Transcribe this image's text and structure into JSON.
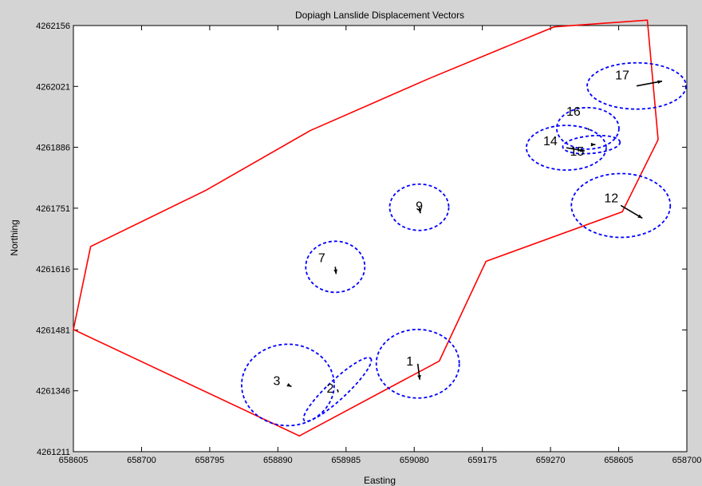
{
  "chart_data": {
    "type": "scatter",
    "title": "Dopiagh Lanslide Displacement Vectors",
    "xlabel": "Easting",
    "ylabel": "Northing",
    "xlim": [
      658605,
      658700
    ],
    "ylim": [
      4261211,
      4262156
    ],
    "x_tick_labels": [
      "658605",
      "658700",
      "658795",
      "658890",
      "658985",
      "659080",
      "659175",
      "659270",
      "658605",
      "658700"
    ],
    "y_tick_labels": [
      "4261211",
      "4261346",
      "4261481",
      "4261616",
      "4261751",
      "4261886",
      "4262021",
      "4262156"
    ],
    "grid": false,
    "boundary_color": "#ff0000",
    "ellipse_color": "#0000ff",
    "arrow_color": "#000000",
    "boundary_line": {
      "name": "",
      "points": [
        [
          658605,
          4261482
        ],
        [
          658629,
          4261666
        ],
        [
          658790,
          4261791
        ],
        [
          658935,
          4261923
        ],
        [
          659100,
          4262038
        ],
        [
          659275,
          4262153
        ],
        [
          659405,
          4262168
        ],
        [
          659420,
          4261903
        ],
        [
          659370,
          4261743
        ],
        [
          659180,
          4261633
        ],
        [
          659115,
          4261412
        ],
        [
          658920,
          4261246
        ],
        [
          658605,
          4261482
        ]
      ]
    },
    "stations": [
      {
        "label": "1",
        "x": 659085,
        "y": 4261406,
        "dx": 5,
        "dy": -40
      },
      {
        "label": "2",
        "x": 658973,
        "y": 4261349,
        "dx": 2,
        "dy": -7
      },
      {
        "label": "3",
        "x": 658904,
        "y": 4261359,
        "dx": 9,
        "dy": -4
      },
      {
        "label": "7",
        "x": 658970,
        "y": 4261621,
        "dx": 2,
        "dy": -18
      },
      {
        "label": "9",
        "x": 659087,
        "y": 4261753,
        "dx": 3,
        "dy": -15
      },
      {
        "label": "12",
        "x": 659368,
        "y": 4261757,
        "dx": 54,
        "dy": -32
      },
      {
        "label": "14",
        "x": 659292,
        "y": 4261885,
        "dx": 46,
        "dy": -8
      },
      {
        "label": "15",
        "x": 659327,
        "y": 4261892,
        "dx": 10,
        "dy": 0
      },
      {
        "label": "16",
        "x": 659322,
        "y": 4261928,
        "dx": 3,
        "dy": -4
      },
      {
        "label": "17",
        "x": 659390,
        "y": 4262022,
        "dx": 64,
        "dy": 12
      }
    ]
  }
}
